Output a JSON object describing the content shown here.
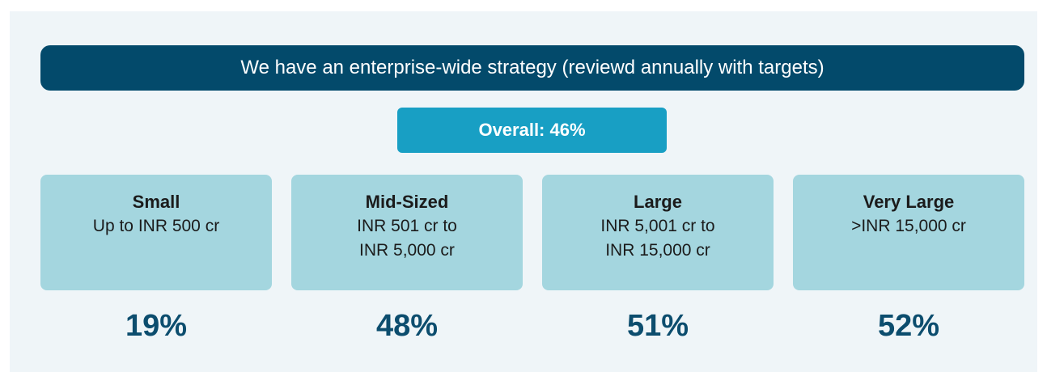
{
  "header": {
    "title": "We have an enterprise-wide strategy (reviewd annually with targets)"
  },
  "overall": {
    "label": "Overall: 46%"
  },
  "segments": [
    {
      "name": "Small",
      "range": [
        "Up to INR 500 cr"
      ],
      "value": "19%"
    },
    {
      "name": "Mid-Sized",
      "range": [
        "INR 501 cr to",
        "INR 5,000 cr"
      ],
      "value": "48%"
    },
    {
      "name": "Large",
      "range": [
        "INR 5,001 cr to",
        "INR 15,000 cr"
      ],
      "value": "51%"
    },
    {
      "name": "Very Large",
      "range": [
        ">INR 15,000 cr"
      ],
      "value": "52%"
    }
  ]
}
